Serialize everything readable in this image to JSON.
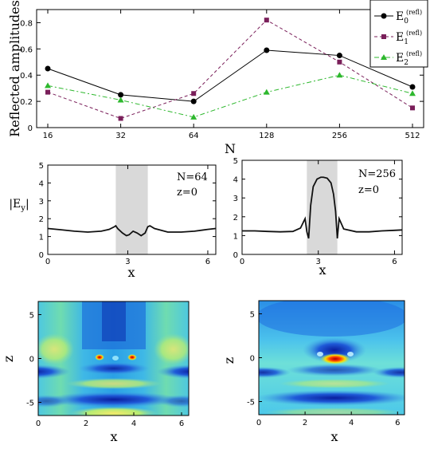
{
  "colors": {
    "series": [
      "#000000",
      "#7a1f5a",
      "#2eb82e"
    ],
    "shade": "#d9d9d9"
  },
  "chart_data": [
    {
      "type": "line",
      "xlabel": "N",
      "ylabel": "Reflected amplitudes",
      "x_scale": "log2",
      "categories": [
        "16",
        "32",
        "64",
        "128",
        "256",
        "512"
      ],
      "ylim": [
        0,
        0.9
      ],
      "yticks": [
        "0",
        "0.2",
        "0.4",
        "0.6",
        "0.8"
      ],
      "legend_position": "top-right",
      "series": [
        {
          "name": "E",
          "sub": "0",
          "sup": "(refl)",
          "marker": "circle",
          "line": "solid",
          "values": [
            0.45,
            0.25,
            0.2,
            0.59,
            0.55,
            0.31
          ]
        },
        {
          "name": "E",
          "sub": "1",
          "sup": "(refl)",
          "marker": "square",
          "line": "dashed",
          "values": [
            0.27,
            0.07,
            0.26,
            0.82,
            0.5,
            0.15
          ]
        },
        {
          "name": "E",
          "sub": "2",
          "sup": "(refl)",
          "marker": "triangle",
          "line": "dashdot",
          "values": [
            0.32,
            0.21,
            0.08,
            0.27,
            0.4,
            0.26
          ]
        }
      ]
    },
    {
      "type": "line",
      "xlabel": "x",
      "ylabel": "|E",
      "ylabel_sub": "y",
      "ylabel_suffix": "|",
      "xlim": [
        0,
        6.3
      ],
      "ylim": [
        0,
        5
      ],
      "xticks": [
        "0",
        "3",
        "6"
      ],
      "yticks": [
        "0",
        "1",
        "2",
        "3",
        "4",
        "5"
      ],
      "shaded_x": [
        2.55,
        3.75
      ],
      "annotation": [
        "N=64",
        "z=0"
      ],
      "x": [
        0,
        0.5,
        1,
        1.5,
        2,
        2.3,
        2.5,
        2.55,
        2.62,
        2.8,
        2.95,
        3.05,
        3.2,
        3.35,
        3.5,
        3.65,
        3.75,
        3.83,
        4,
        4.5,
        5,
        5.5,
        6,
        6.3
      ],
      "y": [
        1.45,
        1.38,
        1.3,
        1.25,
        1.3,
        1.4,
        1.55,
        1.6,
        1.45,
        1.2,
        1.05,
        1.1,
        1.3,
        1.2,
        1.05,
        1.2,
        1.55,
        1.6,
        1.45,
        1.25,
        1.25,
        1.3,
        1.4,
        1.45
      ]
    },
    {
      "type": "line",
      "xlabel": "x",
      "xlim": [
        0,
        6.3
      ],
      "ylim": [
        0,
        5
      ],
      "xticks": [
        "0",
        "3",
        "6"
      ],
      "yticks": [
        "0",
        "1",
        "2",
        "3",
        "4",
        "5"
      ],
      "shaded_x": [
        2.55,
        3.75
      ],
      "annotation": [
        "N=256",
        "z=0"
      ],
      "x": [
        0,
        0.5,
        1,
        1.5,
        2,
        2.3,
        2.48,
        2.55,
        2.62,
        2.7,
        2.8,
        2.95,
        3.1,
        3.2,
        3.35,
        3.5,
        3.6,
        3.68,
        3.75,
        3.82,
        4.0,
        4.5,
        5,
        5.5,
        6,
        6.3
      ],
      "y": [
        1.25,
        1.25,
        1.22,
        1.2,
        1.22,
        1.4,
        1.9,
        1.2,
        0.85,
        2.6,
        3.6,
        4.0,
        4.1,
        4.1,
        4.05,
        3.8,
        3.2,
        2.3,
        0.85,
        1.9,
        1.35,
        1.2,
        1.2,
        1.25,
        1.28,
        1.3
      ]
    },
    {
      "type": "heatmap",
      "xlabel": "x",
      "ylabel": "z",
      "xlim": [
        0,
        6.3
      ],
      "ylim": [
        -6.5,
        6.5
      ],
      "xticks": [
        "0",
        "2",
        "4",
        "6"
      ],
      "yticks": [
        "5",
        "0",
        "-5"
      ]
    },
    {
      "type": "heatmap",
      "xlabel": "x",
      "ylabel": "z",
      "xlim": [
        0,
        6.3
      ],
      "ylim": [
        -6.5,
        6.5
      ],
      "xticks": [
        "0",
        "2",
        "4",
        "6"
      ],
      "yticks": [
        "5",
        "0",
        "-5"
      ]
    }
  ]
}
